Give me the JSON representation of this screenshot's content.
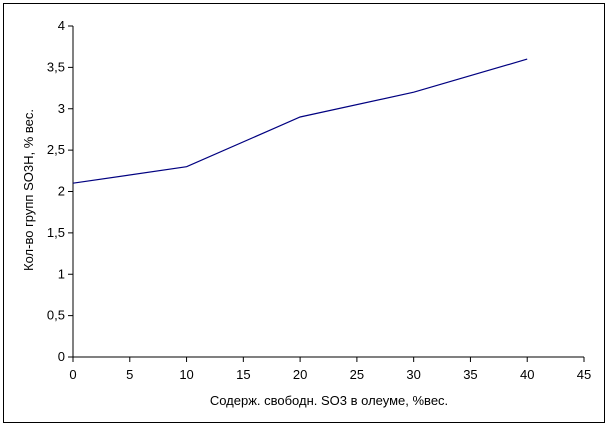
{
  "chart_data": {
    "type": "line",
    "title": "",
    "xlabel": "Содерж. свободн. SO3 в олеуме, %вес.",
    "ylabel": "Кол-во групп SO3H, % вес.",
    "xlim": [
      0,
      45
    ],
    "ylim": [
      0,
      4
    ],
    "x_ticks": [
      0,
      5,
      10,
      15,
      20,
      25,
      30,
      35,
      40,
      45
    ],
    "y_ticks": [
      0,
      0.5,
      1,
      1.5,
      2,
      2.5,
      3,
      3.5,
      4
    ],
    "x_tick_labels": [
      "0",
      "5",
      "10",
      "15",
      "20",
      "25",
      "30",
      "35",
      "40",
      "45"
    ],
    "y_tick_labels": [
      "0",
      "0,5",
      "1",
      "1,5",
      "2",
      "2,5",
      "3",
      "3,5",
      "4"
    ],
    "grid": false,
    "legend": "none",
    "series": [
      {
        "x": [
          0,
          10,
          20,
          30,
          40
        ],
        "y": [
          2.1,
          2.3,
          2.9,
          3.2,
          3.6
        ],
        "color": "#000080"
      }
    ]
  }
}
